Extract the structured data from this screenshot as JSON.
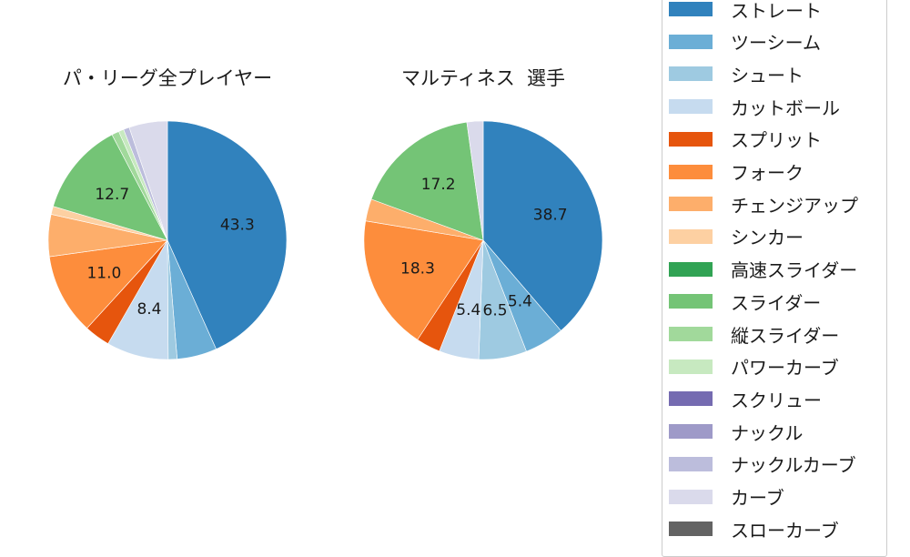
{
  "chart_data": [
    {
      "type": "pie",
      "title": "パ・リーグ全プレイヤー",
      "center": [
        184,
        264
      ],
      "radius": 131,
      "start_angle_deg": 90,
      "direction": "clockwise",
      "slices": [
        {
          "name": "ストレート",
          "value": 43.3,
          "label": "43.3"
        },
        {
          "name": "ツーシーム",
          "value": 5.4,
          "label": ""
        },
        {
          "name": "シュート",
          "value": 1.2,
          "label": ""
        },
        {
          "name": "カットボール",
          "value": 8.4,
          "label": "8.4"
        },
        {
          "name": "スプリット",
          "value": 3.5,
          "label": ""
        },
        {
          "name": "フォーク",
          "value": 11.0,
          "label": "11.0"
        },
        {
          "name": "チェンジアップ",
          "value": 5.7,
          "label": ""
        },
        {
          "name": "シンカー",
          "value": 1.1,
          "label": ""
        },
        {
          "name": "高速スライダー",
          "value": 0.0,
          "label": ""
        },
        {
          "name": "スライダー",
          "value": 12.7,
          "label": "12.7"
        },
        {
          "name": "縦スライダー",
          "value": 1.0,
          "label": ""
        },
        {
          "name": "パワーカーブ",
          "value": 0.7,
          "label": ""
        },
        {
          "name": "スクリュー",
          "value": 0.0,
          "label": ""
        },
        {
          "name": "ナックル",
          "value": 0.0,
          "label": ""
        },
        {
          "name": "ナックルカーブ",
          "value": 0.8,
          "label": ""
        },
        {
          "name": "カーブ",
          "value": 5.2,
          "label": ""
        },
        {
          "name": "スローカーブ",
          "value": 0.0,
          "label": ""
        }
      ]
    },
    {
      "type": "pie",
      "title": "マルティネス  選手",
      "center": [
        531,
        264
      ],
      "radius": 131,
      "start_angle_deg": 90,
      "direction": "clockwise",
      "slices": [
        {
          "name": "ストレート",
          "value": 38.7,
          "label": "38.7"
        },
        {
          "name": "ツーシーム",
          "value": 5.4,
          "label": "5.4"
        },
        {
          "name": "シュート",
          "value": 6.5,
          "label": "6.5"
        },
        {
          "name": "カットボール",
          "value": 5.4,
          "label": "5.4"
        },
        {
          "name": "スプリット",
          "value": 3.3,
          "label": ""
        },
        {
          "name": "フォーク",
          "value": 18.3,
          "label": "18.3"
        },
        {
          "name": "チェンジアップ",
          "value": 3.0,
          "label": ""
        },
        {
          "name": "シンカー",
          "value": 0.0,
          "label": ""
        },
        {
          "name": "高速スライダー",
          "value": 0.0,
          "label": ""
        },
        {
          "name": "スライダー",
          "value": 17.2,
          "label": "17.2"
        },
        {
          "name": "縦スライダー",
          "value": 0.0,
          "label": ""
        },
        {
          "name": "パワーカーブ",
          "value": 0.0,
          "label": ""
        },
        {
          "name": "スクリュー",
          "value": 0.0,
          "label": ""
        },
        {
          "name": "ナックル",
          "value": 0.0,
          "label": ""
        },
        {
          "name": "ナックルカーブ",
          "value": 0.0,
          "label": ""
        },
        {
          "name": "カーブ",
          "value": 2.2,
          "label": ""
        },
        {
          "name": "スローカーブ",
          "value": 0.0,
          "label": ""
        }
      ]
    }
  ],
  "legend": {
    "position": "right",
    "items": [
      {
        "label": "ストレート",
        "color": "#3182bd"
      },
      {
        "label": "ツーシーム",
        "color": "#6baed6"
      },
      {
        "label": "シュート",
        "color": "#9ecae1"
      },
      {
        "label": "カットボール",
        "color": "#c6dbef"
      },
      {
        "label": "スプリット",
        "color": "#e6550d"
      },
      {
        "label": "フォーク",
        "color": "#fd8d3c"
      },
      {
        "label": "チェンジアップ",
        "color": "#fdae6b"
      },
      {
        "label": "シンカー",
        "color": "#fdd0a2"
      },
      {
        "label": "高速スライダー",
        "color": "#31a354"
      },
      {
        "label": "スライダー",
        "color": "#74c476"
      },
      {
        "label": "縦スライダー",
        "color": "#a1d99b"
      },
      {
        "label": "パワーカーブ",
        "color": "#c7e9c0"
      },
      {
        "label": "スクリュー",
        "color": "#756bb1"
      },
      {
        "label": "ナックル",
        "color": "#9e9ac8"
      },
      {
        "label": "ナックルカーブ",
        "color": "#bcbddc"
      },
      {
        "label": "カーブ",
        "color": "#dadaeb"
      },
      {
        "label": "スローカーブ",
        "color": "#636363"
      }
    ]
  },
  "titles": {
    "left": "パ・リーグ全プレイヤー",
    "right": "マルティネス  選手"
  }
}
